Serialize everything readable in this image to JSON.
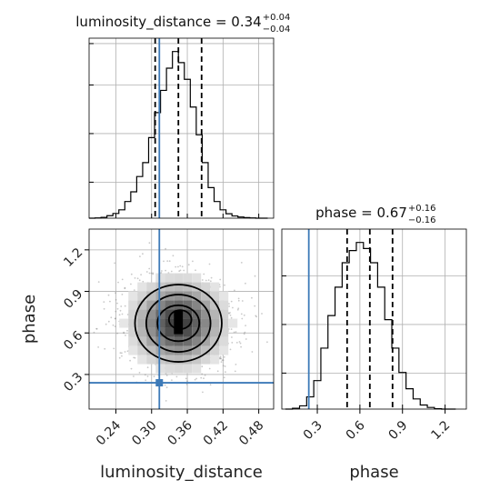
{
  "chart_data": [
    {
      "type": "histogram",
      "panel": "luminosity_distance-marginal",
      "title": {
        "name": "luminosity_distance",
        "value": "0.34",
        "plus": "+0.04",
        "minus": "−0.04"
      },
      "xlim": [
        0.195,
        0.505
      ],
      "bins": [
        0.2,
        0.21,
        0.22,
        0.23,
        0.24,
        0.25,
        0.26,
        0.27,
        0.28,
        0.29,
        0.3,
        0.31,
        0.32,
        0.33,
        0.34,
        0.35,
        0.36,
        0.37,
        0.38,
        0.39,
        0.4,
        0.41,
        0.42,
        0.43,
        0.44,
        0.45,
        0.46,
        0.47,
        0.48,
        0.49
      ],
      "values": [
        0,
        1,
        3,
        9,
        17,
        30,
        60,
        95,
        150,
        200,
        290,
        380,
        460,
        540,
        600,
        560,
        500,
        400,
        300,
        200,
        110,
        60,
        30,
        16,
        8,
        4,
        2,
        1,
        0,
        0
      ],
      "quantiles": [
        0.306,
        0.345,
        0.384
      ],
      "truth": 0.313
    },
    {
      "type": "scatter",
      "panel": "phase-vs-luminosity_distance",
      "xlabel": "luminosity_distance",
      "ylabel": "phase",
      "xlim": [
        0.195,
        0.505
      ],
      "ylim": [
        0.05,
        1.35
      ],
      "xticks": [
        "0.24",
        "0.30",
        "0.36",
        "0.42",
        "0.48"
      ],
      "yticks": [
        "0.3",
        "0.6",
        "0.9",
        "1.2"
      ],
      "center": [
        0.345,
        0.67
      ],
      "spread": [
        0.045,
        0.18
      ],
      "contour_levels_sigma": [
        0.5,
        1.0,
        1.5,
        2.0
      ],
      "truth": [
        0.313,
        0.24
      ]
    },
    {
      "type": "histogram",
      "panel": "phase-marginal",
      "title": {
        "name": "phase",
        "value": "0.67",
        "plus": "+0.16",
        "minus": "−0.16"
      },
      "xlabel": "phase",
      "xlim": [
        0.05,
        1.35
      ],
      "xticks": [
        "0.3",
        "0.6",
        "0.9",
        "1.2"
      ],
      "bins": [
        0.1,
        0.15,
        0.2,
        0.25,
        0.3,
        0.35,
        0.4,
        0.45,
        0.5,
        0.55,
        0.6,
        0.65,
        0.7,
        0.75,
        0.8,
        0.85,
        0.9,
        0.95,
        1.0,
        1.05,
        1.1,
        1.15,
        1.2,
        1.25
      ],
      "values": [
        0,
        2,
        8,
        30,
        70,
        150,
        230,
        300,
        360,
        390,
        410,
        395,
        360,
        300,
        220,
        150,
        90,
        50,
        25,
        10,
        4,
        1,
        0,
        0
      ],
      "quantiles": [
        0.51,
        0.67,
        0.83
      ],
      "truth": 0.24
    }
  ]
}
